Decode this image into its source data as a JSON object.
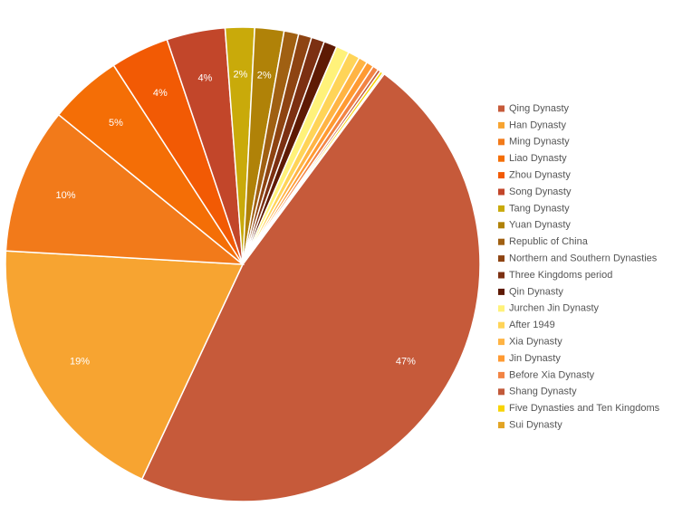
{
  "chart_data": {
    "type": "pie",
    "categories": [
      "Qing Dynasty",
      "Han Dynasty",
      "Ming Dynasty",
      "Liao Dynasty",
      "Zhou Dynasty",
      "Song Dynasty",
      "Tang Dynasty",
      "Yuan Dynasty",
      "Republic of China",
      "Northern and Southern Dynasties",
      "Three Kingdoms period",
      "Qin Dynasty",
      "Jurchen Jin Dynasty",
      "After 1949",
      "Xia Dynasty",
      "Jin Dynasty",
      "Before Xia Dynasty",
      "Shang Dynasty",
      "Five Dynasties and Ten Kingdoms",
      "Sui Dynasty"
    ],
    "values": [
      47,
      19,
      10,
      5,
      4,
      4,
      2,
      2,
      1,
      0.9,
      0.9,
      0.9,
      0.9,
      0.8,
      0.6,
      0.5,
      0.4,
      0.2,
      0.2,
      0.1
    ],
    "value_labels": [
      "47%",
      "19%",
      "10%",
      "5%",
      "4%",
      "4%",
      "2%",
      "2%",
      null,
      null,
      null,
      null,
      null,
      null,
      null,
      null,
      null,
      null,
      null,
      null
    ],
    "colors": [
      "#c65a3a",
      "#f7a431",
      "#f27a1a",
      "#f46e06",
      "#f25a04",
      "#c2462a",
      "#c9aa0a",
      "#b08208",
      "#a06012",
      "#8e4412",
      "#7c3012",
      "#5e1a04",
      "#fff27a",
      "#ffd458",
      "#ffb444",
      "#ff9a32",
      "#f28444",
      "#c25a3a",
      "#f8d404",
      "#e2a424"
    ],
    "legend": "right"
  }
}
